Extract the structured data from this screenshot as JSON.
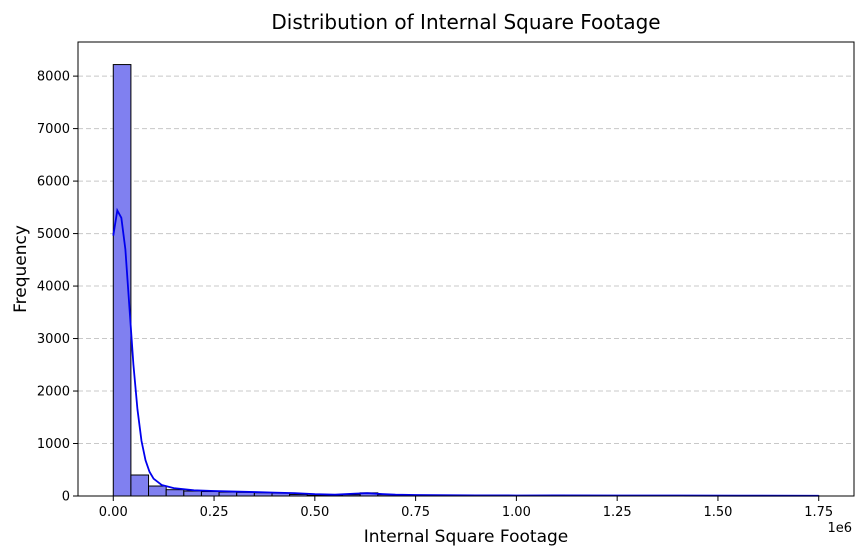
{
  "chart_data": {
    "type": "bar",
    "title": "Distribution of Internal Square Footage",
    "xlabel": "Internal Square Footage",
    "ylabel": "Frequency",
    "x_offset_label": "1e6",
    "x_scale_multiplier": 1000000,
    "xlim": [
      -0.0875,
      1.8375
    ],
    "ylim": [
      0,
      8650
    ],
    "x_ticks": [
      0.0,
      0.25,
      0.5,
      0.75,
      1.0,
      1.25,
      1.5,
      1.75
    ],
    "x_tick_labels": [
      "0.00",
      "0.25",
      "0.50",
      "0.75",
      "1.00",
      "1.25",
      "1.50",
      "1.75"
    ],
    "y_ticks": [
      0,
      1000,
      2000,
      3000,
      4000,
      5000,
      6000,
      7000,
      8000
    ],
    "y_tick_labels": [
      "0",
      "1000",
      "2000",
      "3000",
      "4000",
      "5000",
      "6000",
      "7000",
      "8000"
    ],
    "grid": {
      "axis": "y",
      "style": "dashed",
      "color": "#c8c8c8"
    },
    "bars": {
      "bin_start": 0.0,
      "bin_width": 0.04375,
      "values": [
        8220,
        400,
        190,
        120,
        95,
        85,
        75,
        70,
        62,
        55,
        30,
        15,
        10,
        25,
        60,
        25,
        18,
        14,
        12,
        10,
        10,
        8,
        8,
        7,
        7,
        10,
        12,
        9,
        7,
        6,
        6,
        5,
        5,
        5,
        5,
        5,
        4,
        4,
        4,
        6
      ],
      "fill": "#8080f0",
      "edge": "#000000"
    },
    "kde": {
      "color": "#0000ee",
      "x": [
        0.0,
        0.01,
        0.02,
        0.03,
        0.04,
        0.05,
        0.06,
        0.07,
        0.08,
        0.09,
        0.1,
        0.12,
        0.15,
        0.2,
        0.25,
        0.3,
        0.35,
        0.4,
        0.45,
        0.5,
        0.55,
        0.6,
        0.63,
        0.66,
        0.7,
        0.75,
        0.8,
        0.9,
        1.0,
        1.1,
        1.25,
        1.4,
        1.55,
        1.75
      ],
      "y": [
        4960,
        5440,
        5300,
        4700,
        3600,
        2500,
        1650,
        1050,
        680,
        460,
        330,
        210,
        150,
        110,
        95,
        85,
        75,
        65,
        55,
        35,
        25,
        45,
        55,
        40,
        25,
        18,
        15,
        12,
        10,
        12,
        10,
        8,
        6,
        5
      ]
    }
  }
}
